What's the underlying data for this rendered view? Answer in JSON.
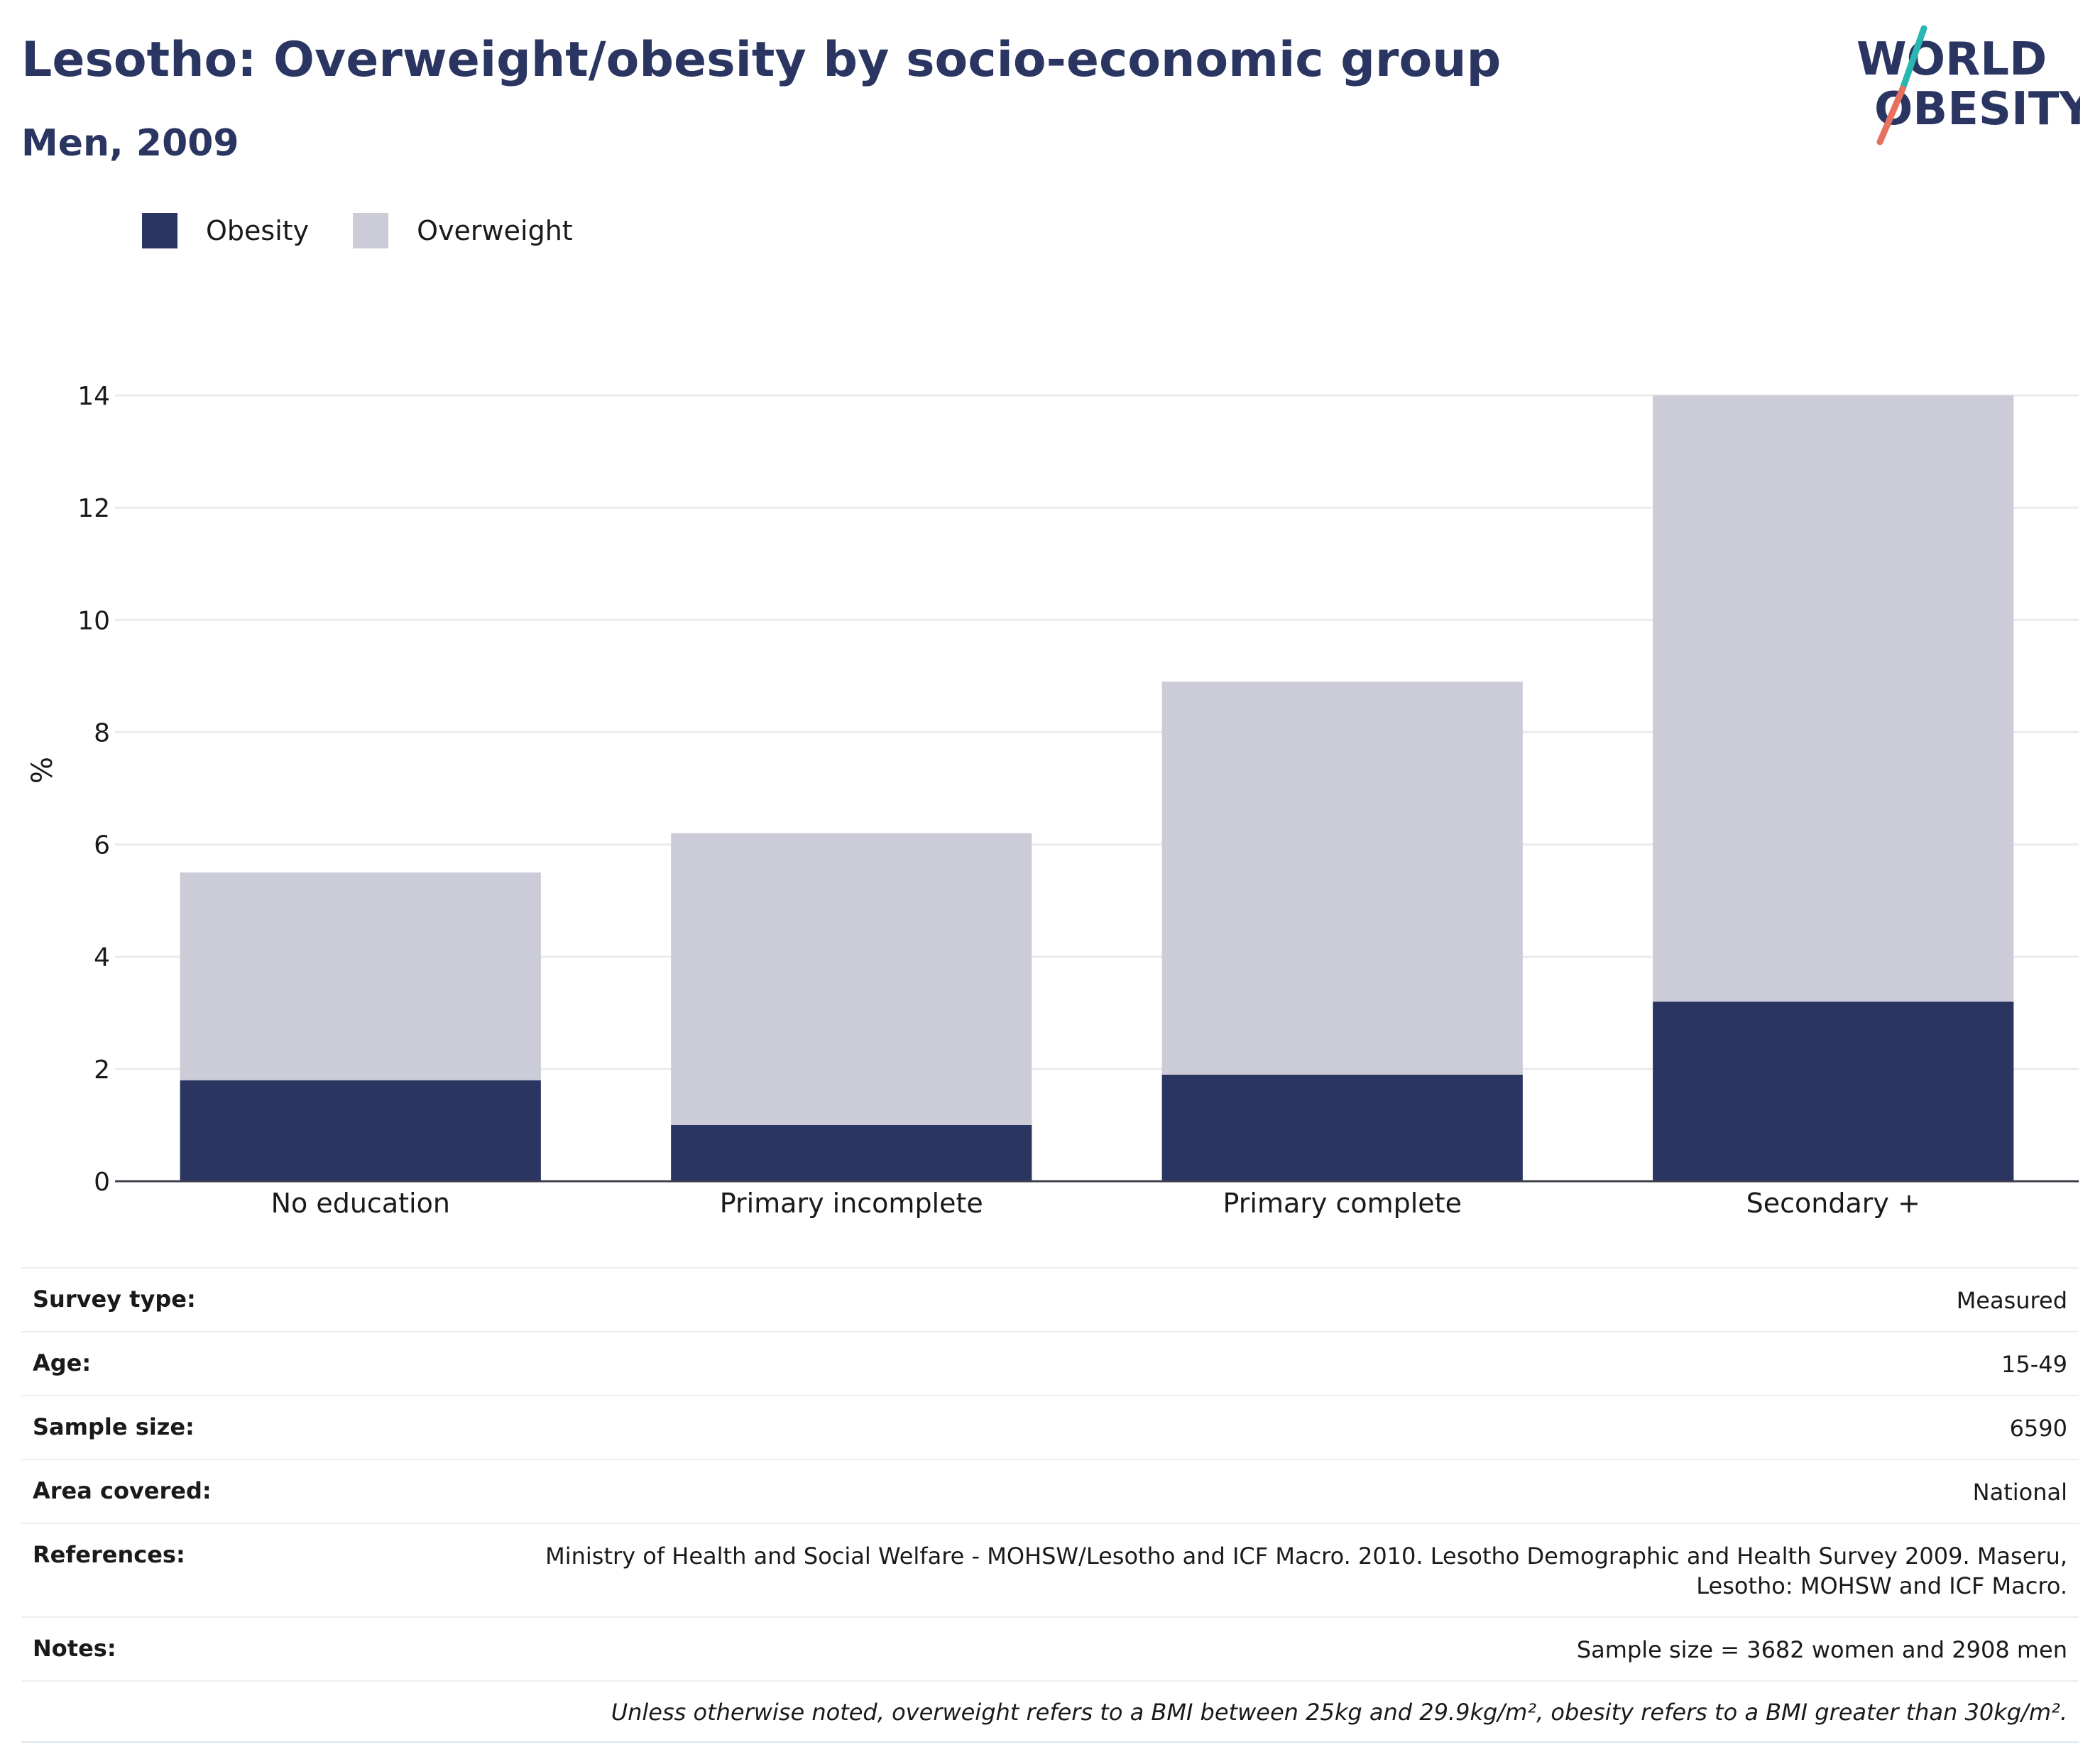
{
  "title": "Lesotho: Overweight/obesity by socio-economic group",
  "subtitle": "Men, 2009",
  "logo": {
    "line1": "WORLD",
    "line2": "OBESITY",
    "colors": {
      "text": "#2a3561",
      "slash_top": "#2ab7b1",
      "slash_bottom": "#e8705f"
    }
  },
  "legend": [
    {
      "label": "Obesity",
      "color": "#2a3561"
    },
    {
      "label": "Overweight",
      "color": "#cbccd8"
    }
  ],
  "chart_data": {
    "type": "bar",
    "stacked": true,
    "categories": [
      "No education",
      "Primary incomplete",
      "Primary complete",
      "Secondary +"
    ],
    "series": [
      {
        "name": "Obesity",
        "color": "#2a3561",
        "values": [
          1.8,
          1.0,
          1.9,
          3.2
        ]
      },
      {
        "name": "Overweight",
        "color": "#cbccd8",
        "values": [
          3.7,
          5.2,
          7.0,
          10.8
        ]
      }
    ],
    "ylabel": "%",
    "ylim": [
      0,
      14
    ],
    "yticks": [
      0,
      2,
      4,
      6,
      8,
      10,
      12,
      14
    ],
    "grid": true,
    "legend_position": "top-left"
  },
  "info": {
    "rows": [
      {
        "label": "Survey type:",
        "value": "Measured"
      },
      {
        "label": "Age:",
        "value": "15-49"
      },
      {
        "label": "Sample size:",
        "value": "6590"
      },
      {
        "label": "Area covered:",
        "value": "National"
      },
      {
        "label": "References:",
        "value": "Ministry of Health and Social Welfare - MOHSW/Lesotho and ICF Macro. 2010. Lesotho Demographic and Health Survey 2009. Maseru, Lesotho: MOHSW and ICF Macro."
      },
      {
        "label": "Notes:",
        "value": "Sample size = 3682 women and 2908 men"
      }
    ],
    "footnote": "Unless otherwise noted, overweight refers to a BMI between 25kg and 29.9kg/m², obesity refers to a BMI greater than 30kg/m²."
  }
}
